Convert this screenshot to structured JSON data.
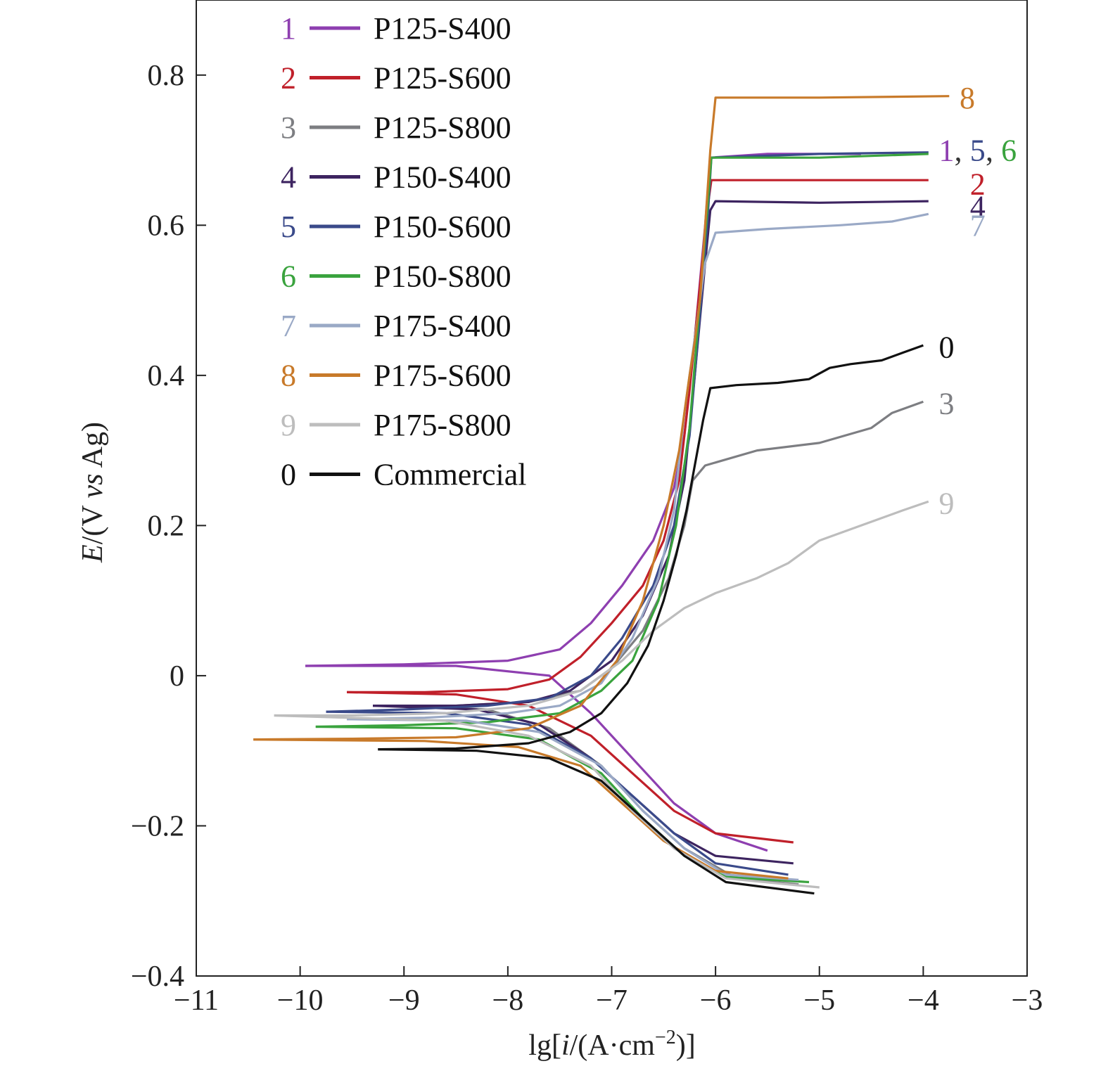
{
  "chart_data": {
    "type": "line",
    "xlabel": {
      "pre": "lg[",
      "italic": "i",
      "post": "/(A·cm",
      "sup": "−2",
      "tail": ")]"
    },
    "ylabel": {
      "italic1": "E",
      "mid": "/(V ",
      "italic2": "vs",
      "tail": " Ag)"
    },
    "xlim": [
      -11,
      -3
    ],
    "ylim": [
      -0.4,
      0.9
    ],
    "xticks": [
      {
        "v": -11,
        "label": "−11"
      },
      {
        "v": -10,
        "label": "−10"
      },
      {
        "v": -9,
        "label": "−9"
      },
      {
        "v": -8,
        "label": "−8"
      },
      {
        "v": -7,
        "label": "−7"
      },
      {
        "v": -6,
        "label": "−6"
      },
      {
        "v": -5,
        "label": "−5"
      },
      {
        "v": -4,
        "label": "−4"
      },
      {
        "v": -3,
        "label": "−3"
      }
    ],
    "yticks": [
      {
        "v": -0.4,
        "label": "−0.4"
      },
      {
        "v": -0.2,
        "label": "−0.2"
      },
      {
        "v": 0,
        "label": "0"
      },
      {
        "v": 0.2,
        "label": "0.2"
      },
      {
        "v": 0.4,
        "label": "0.4"
      },
      {
        "v": 0.6,
        "label": "0.6"
      },
      {
        "v": 0.8,
        "label": "0.8"
      }
    ],
    "legend_position": "top-left",
    "series": [
      {
        "id": "1",
        "name": "P125-S400",
        "color": "#8e3fb0",
        "anodic": [
          [
            -9.95,
            0.013
          ],
          [
            -9,
            0.015
          ],
          [
            -8,
            0.02
          ],
          [
            -7.5,
            0.035
          ],
          [
            -7.2,
            0.07
          ],
          [
            -6.9,
            0.12
          ],
          [
            -6.6,
            0.18
          ],
          [
            -6.4,
            0.25
          ],
          [
            -6.3,
            0.32
          ],
          [
            -6.2,
            0.45
          ],
          [
            -6.1,
            0.6
          ],
          [
            -6.05,
            0.69
          ],
          [
            -5.5,
            0.695
          ],
          [
            -4.6,
            0.695
          ]
        ],
        "cathodic": [
          [
            -9.95,
            0.013
          ],
          [
            -8.5,
            0.013
          ],
          [
            -7.6,
            0.0
          ],
          [
            -7.2,
            -0.05
          ],
          [
            -6.8,
            -0.11
          ],
          [
            -6.4,
            -0.17
          ],
          [
            -6.0,
            -0.21
          ],
          [
            -5.5,
            -0.233
          ]
        ],
        "end_label": "1",
        "end_label_at": [
          -3.85,
          0.7
        ]
      },
      {
        "id": "2",
        "name": "P125-S600",
        "color": "#c0202a",
        "anodic": [
          [
            -9.55,
            -0.022
          ],
          [
            -8.8,
            -0.022
          ],
          [
            -8,
            -0.018
          ],
          [
            -7.6,
            -0.005
          ],
          [
            -7.3,
            0.025
          ],
          [
            -7,
            0.07
          ],
          [
            -6.7,
            0.12
          ],
          [
            -6.5,
            0.18
          ],
          [
            -6.35,
            0.26
          ],
          [
            -6.25,
            0.38
          ],
          [
            -6.15,
            0.52
          ],
          [
            -6.08,
            0.62
          ],
          [
            -6.04,
            0.66
          ],
          [
            -5,
            0.66
          ],
          [
            -3.95,
            0.66
          ]
        ],
        "cathodic": [
          [
            -9.55,
            -0.022
          ],
          [
            -8.5,
            -0.025
          ],
          [
            -7.8,
            -0.04
          ],
          [
            -7.2,
            -0.08
          ],
          [
            -6.8,
            -0.13
          ],
          [
            -6.4,
            -0.18
          ],
          [
            -6.0,
            -0.21
          ],
          [
            -5.25,
            -0.222
          ]
        ],
        "end_label": "2",
        "end_label_at": [
          -3.55,
          0.655
        ]
      },
      {
        "id": "3",
        "name": "P125-S800",
        "color": "#7d7e82",
        "anodic": [
          [
            -9.1,
            -0.04
          ],
          [
            -8.5,
            -0.04
          ],
          [
            -7.8,
            -0.035
          ],
          [
            -7.3,
            -0.02
          ],
          [
            -7,
            0.01
          ],
          [
            -6.7,
            0.06
          ],
          [
            -6.45,
            0.13
          ],
          [
            -6.3,
            0.2
          ],
          [
            -6.22,
            0.26
          ],
          [
            -6.1,
            0.28
          ],
          [
            -5.6,
            0.3
          ],
          [
            -5,
            0.31
          ],
          [
            -4.5,
            0.33
          ],
          [
            -4.3,
            0.35
          ],
          [
            -4,
            0.365
          ]
        ],
        "cathodic": [
          [
            -9.1,
            -0.04
          ],
          [
            -8.2,
            -0.045
          ],
          [
            -7.6,
            -0.07
          ],
          [
            -7.1,
            -0.12
          ],
          [
            -6.7,
            -0.18
          ],
          [
            -6.3,
            -0.23
          ],
          [
            -5.8,
            -0.27
          ],
          [
            -5.2,
            -0.278
          ]
        ],
        "end_label": "3",
        "end_label_at": [
          -3.85,
          0.363
        ]
      },
      {
        "id": "4",
        "name": "P150-S400",
        "color": "#3d2460",
        "anodic": [
          [
            -9.3,
            -0.04
          ],
          [
            -8.5,
            -0.04
          ],
          [
            -7.8,
            -0.035
          ],
          [
            -7.4,
            -0.02
          ],
          [
            -7,
            0.02
          ],
          [
            -6.7,
            0.08
          ],
          [
            -6.45,
            0.16
          ],
          [
            -6.3,
            0.26
          ],
          [
            -6.2,
            0.4
          ],
          [
            -6.1,
            0.55
          ],
          [
            -6.05,
            0.62
          ],
          [
            -6.0,
            0.632
          ],
          [
            -5,
            0.63
          ],
          [
            -3.95,
            0.632
          ]
        ],
        "cathodic": [
          [
            -9.3,
            -0.04
          ],
          [
            -8.3,
            -0.045
          ],
          [
            -7.7,
            -0.065
          ],
          [
            -7.2,
            -0.11
          ],
          [
            -6.8,
            -0.16
          ],
          [
            -6.4,
            -0.21
          ],
          [
            -6.0,
            -0.24
          ],
          [
            -5.25,
            -0.25
          ]
        ],
        "end_label": "4",
        "end_label_at": [
          -3.55,
          0.625
        ]
      },
      {
        "id": "5",
        "name": "P150-S600",
        "color": "#3a4a8a",
        "anodic": [
          [
            -9.75,
            -0.048
          ],
          [
            -9,
            -0.045
          ],
          [
            -8.2,
            -0.04
          ],
          [
            -7.6,
            -0.03
          ],
          [
            -7.2,
            0.0
          ],
          [
            -6.9,
            0.05
          ],
          [
            -6.6,
            0.12
          ],
          [
            -6.4,
            0.2
          ],
          [
            -6.25,
            0.32
          ],
          [
            -6.15,
            0.48
          ],
          [
            -6.08,
            0.6
          ],
          [
            -6.04,
            0.69
          ],
          [
            -5,
            0.695
          ],
          [
            -3.95,
            0.697
          ]
        ],
        "cathodic": [
          [
            -9.75,
            -0.048
          ],
          [
            -8.6,
            -0.05
          ],
          [
            -7.8,
            -0.065
          ],
          [
            -7.2,
            -0.11
          ],
          [
            -6.8,
            -0.16
          ],
          [
            -6.4,
            -0.21
          ],
          [
            -6.0,
            -0.25
          ],
          [
            -5.3,
            -0.265
          ]
        ],
        "end_label": "5",
        "end_label_at": [
          -3.55,
          0.7
        ]
      },
      {
        "id": "6",
        "name": "P150-S800",
        "color": "#3aa33e",
        "anodic": [
          [
            -9.85,
            -0.068
          ],
          [
            -9,
            -0.066
          ],
          [
            -8.2,
            -0.062
          ],
          [
            -7.5,
            -0.05
          ],
          [
            -7.1,
            -0.02
          ],
          [
            -6.8,
            0.02
          ],
          [
            -6.55,
            0.1
          ],
          [
            -6.38,
            0.2
          ],
          [
            -6.25,
            0.33
          ],
          [
            -6.15,
            0.5
          ],
          [
            -6.08,
            0.62
          ],
          [
            -6.04,
            0.69
          ],
          [
            -5,
            0.69
          ],
          [
            -3.95,
            0.695
          ]
        ],
        "cathodic": [
          [
            -9.85,
            -0.068
          ],
          [
            -8.5,
            -0.07
          ],
          [
            -7.7,
            -0.085
          ],
          [
            -7.1,
            -0.13
          ],
          [
            -6.7,
            -0.19
          ],
          [
            -6.3,
            -0.24
          ],
          [
            -5.9,
            -0.268
          ],
          [
            -5.1,
            -0.275
          ]
        ],
        "end_label": "6",
        "end_label_at": [
          -3.25,
          0.7
        ]
      },
      {
        "id": "7",
        "name": "P175-S400",
        "color": "#9aa9c6",
        "anodic": [
          [
            -9.55,
            -0.058
          ],
          [
            -8.8,
            -0.056
          ],
          [
            -8,
            -0.05
          ],
          [
            -7.5,
            -0.04
          ],
          [
            -7.1,
            -0.01
          ],
          [
            -6.8,
            0.05
          ],
          [
            -6.55,
            0.13
          ],
          [
            -6.4,
            0.22
          ],
          [
            -6.3,
            0.35
          ],
          [
            -6.2,
            0.45
          ],
          [
            -6.1,
            0.55
          ],
          [
            -6.0,
            0.59
          ],
          [
            -5.5,
            0.595
          ],
          [
            -4.8,
            0.6
          ],
          [
            -4.3,
            0.605
          ],
          [
            -3.95,
            0.615
          ]
        ],
        "cathodic": [
          [
            -9.55,
            -0.058
          ],
          [
            -8.4,
            -0.06
          ],
          [
            -7.7,
            -0.075
          ],
          [
            -7.1,
            -0.12
          ],
          [
            -6.7,
            -0.18
          ],
          [
            -6.3,
            -0.23
          ],
          [
            -5.9,
            -0.265
          ],
          [
            -5.2,
            -0.272
          ]
        ],
        "end_label": "7",
        "end_label_at": [
          -3.55,
          0.6
        ]
      },
      {
        "id": "8",
        "name": "P175-S600",
        "color": "#c87a2a",
        "anodic": [
          [
            -10.45,
            -0.085
          ],
          [
            -9.5,
            -0.084
          ],
          [
            -8.5,
            -0.082
          ],
          [
            -7.8,
            -0.07
          ],
          [
            -7.3,
            -0.04
          ],
          [
            -6.95,
            0.02
          ],
          [
            -6.7,
            0.1
          ],
          [
            -6.5,
            0.2
          ],
          [
            -6.35,
            0.3
          ],
          [
            -6.25,
            0.4
          ],
          [
            -6.2,
            0.445
          ],
          [
            -6.15,
            0.5
          ],
          [
            -6.1,
            0.6
          ],
          [
            -6.05,
            0.7
          ],
          [
            -6.0,
            0.77
          ],
          [
            -5,
            0.77
          ],
          [
            -3.75,
            0.772
          ]
        ],
        "cathodic": [
          [
            -10.45,
            -0.085
          ],
          [
            -8.8,
            -0.087
          ],
          [
            -7.9,
            -0.095
          ],
          [
            -7.3,
            -0.12
          ],
          [
            -6.9,
            -0.17
          ],
          [
            -6.5,
            -0.22
          ],
          [
            -6.0,
            -0.26
          ],
          [
            -5.3,
            -0.27
          ]
        ],
        "end_label": "8",
        "end_label_at": [
          -3.65,
          0.77
        ]
      },
      {
        "id": "9",
        "name": "P175-S800",
        "color": "#bdbdbd",
        "anodic": [
          [
            -10.25,
            -0.053
          ],
          [
            -9.5,
            -0.053
          ],
          [
            -8.6,
            -0.05
          ],
          [
            -7.8,
            -0.04
          ],
          [
            -7.3,
            -0.02
          ],
          [
            -6.9,
            0.02
          ],
          [
            -6.6,
            0.06
          ],
          [
            -6.3,
            0.09
          ],
          [
            -6.0,
            0.11
          ],
          [
            -5.6,
            0.13
          ],
          [
            -5.3,
            0.15
          ],
          [
            -5.0,
            0.18
          ],
          [
            -4.6,
            0.2
          ],
          [
            -4.2,
            0.22
          ],
          [
            -3.95,
            0.232
          ]
        ],
        "cathodic": [
          [
            -10.25,
            -0.053
          ],
          [
            -8.6,
            -0.06
          ],
          [
            -7.8,
            -0.08
          ],
          [
            -7.2,
            -0.12
          ],
          [
            -6.8,
            -0.18
          ],
          [
            -6.4,
            -0.23
          ],
          [
            -5.9,
            -0.27
          ],
          [
            -5.0,
            -0.282
          ]
        ],
        "end_label": "9",
        "end_label_at": [
          -3.85,
          0.23
        ]
      },
      {
        "id": "0",
        "name": "Commercial",
        "color": "#111111",
        "anodic": [
          [
            -9.25,
            -0.098
          ],
          [
            -8.5,
            -0.097
          ],
          [
            -7.8,
            -0.09
          ],
          [
            -7.4,
            -0.075
          ],
          [
            -7.1,
            -0.05
          ],
          [
            -6.85,
            -0.01
          ],
          [
            -6.65,
            0.04
          ],
          [
            -6.5,
            0.1
          ],
          [
            -6.38,
            0.16
          ],
          [
            -6.28,
            0.22
          ],
          [
            -6.2,
            0.28
          ],
          [
            -6.12,
            0.34
          ],
          [
            -6.05,
            0.383
          ],
          [
            -5.8,
            0.387
          ],
          [
            -5.4,
            0.39
          ],
          [
            -5.1,
            0.395
          ],
          [
            -4.9,
            0.41
          ],
          [
            -4.7,
            0.415
          ],
          [
            -4.4,
            0.42
          ],
          [
            -4.2,
            0.43
          ],
          [
            -4.0,
            0.44
          ]
        ],
        "cathodic": [
          [
            -9.25,
            -0.098
          ],
          [
            -8.3,
            -0.1
          ],
          [
            -7.6,
            -0.11
          ],
          [
            -7.1,
            -0.14
          ],
          [
            -6.7,
            -0.19
          ],
          [
            -6.3,
            -0.24
          ],
          [
            -5.9,
            -0.275
          ],
          [
            -5.05,
            -0.29
          ]
        ],
        "end_label": "0",
        "end_label_at": [
          -3.85,
          0.438
        ]
      }
    ],
    "end_label_commas": [
      {
        "text": ",",
        "at": [
          -3.7,
          0.7
        ],
        "color": "#333333"
      },
      {
        "text": ",",
        "at": [
          -3.4,
          0.7
        ],
        "color": "#333333"
      }
    ]
  }
}
